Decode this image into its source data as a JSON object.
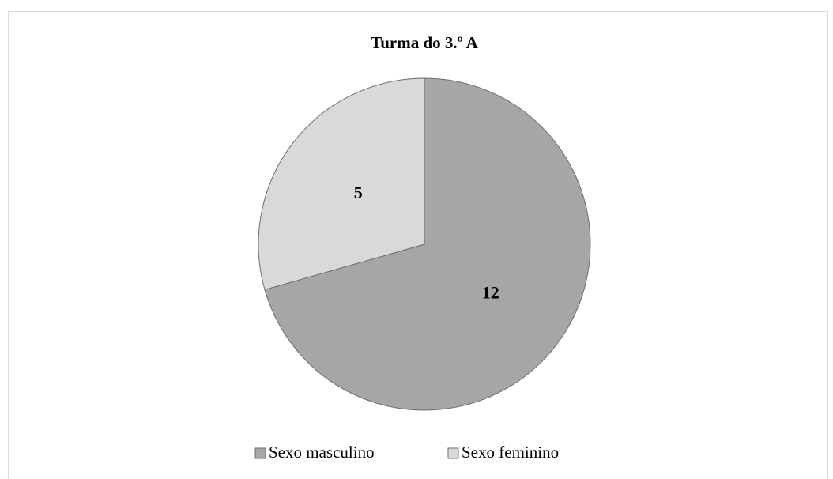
{
  "chart_data": {
    "type": "pie",
    "title": "Turma do 3.º A",
    "categories": [
      "Sexo masculino",
      "Sexo feminino"
    ],
    "values": [
      12,
      5
    ],
    "colors": [
      "#a6a6a6",
      "#d9d9d9"
    ],
    "legend": "bottom"
  }
}
